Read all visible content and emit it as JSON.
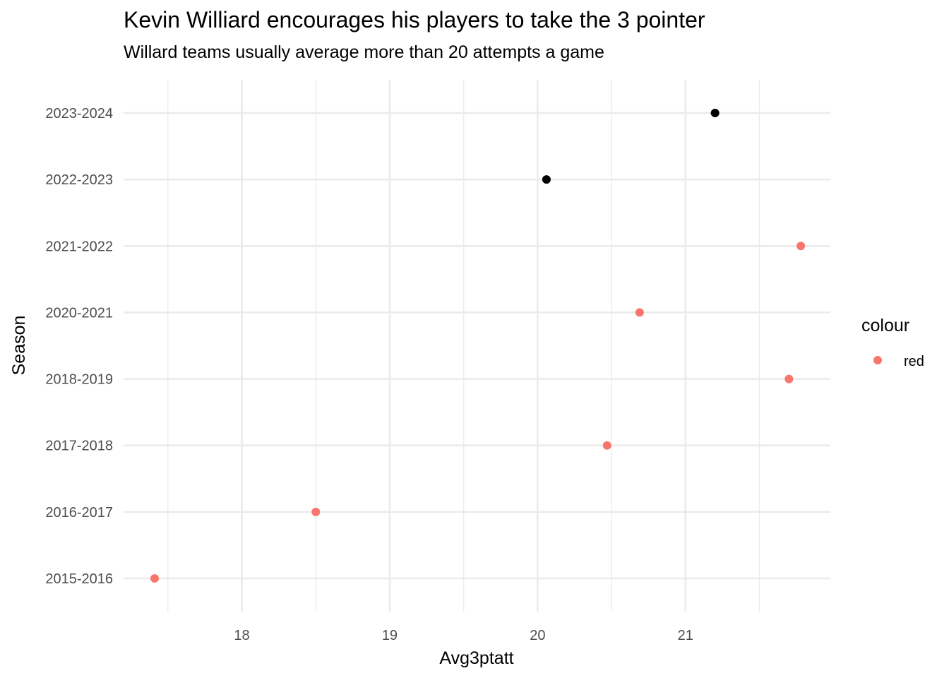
{
  "chart_data": {
    "type": "scatter",
    "title": "Kevin Williard encourages his players to take the 3 pointer",
    "subtitle": "Willard teams usually average more than 20 attempts a game",
    "xlabel": "Avg3ptatt",
    "ylabel": "Season",
    "xlim": [
      17.2,
      21.98
    ],
    "x_ticks": [
      18,
      19,
      20,
      21
    ],
    "x_minor_ticks": [
      17.5,
      18.5,
      19.5,
      20.5,
      21.5
    ],
    "categories": [
      "2015-2016",
      "2016-2017",
      "2017-2018",
      "2018-2019",
      "2020-2021",
      "2021-2022",
      "2022-2023",
      "2023-2024"
    ],
    "grid": true,
    "legend": {
      "title": "colour",
      "placement": "right",
      "entries": [
        {
          "label": "red",
          "color": "#f8766d"
        }
      ]
    },
    "points": [
      {
        "season": "2015-2016",
        "x": 17.41,
        "color": "#f8766d"
      },
      {
        "season": "2016-2017",
        "x": 18.5,
        "color": "#f8766d"
      },
      {
        "season": "2017-2018",
        "x": 20.47,
        "color": "#f8766d"
      },
      {
        "season": "2018-2019",
        "x": 21.7,
        "color": "#f8766d"
      },
      {
        "season": "2020-2021",
        "x": 20.69,
        "color": "#f8766d"
      },
      {
        "season": "2021-2022",
        "x": 21.78,
        "color": "#f8766d"
      },
      {
        "season": "2022-2023",
        "x": 20.06,
        "color": "#000000"
      },
      {
        "season": "2023-2024",
        "x": 21.2,
        "color": "#000000"
      }
    ]
  }
}
